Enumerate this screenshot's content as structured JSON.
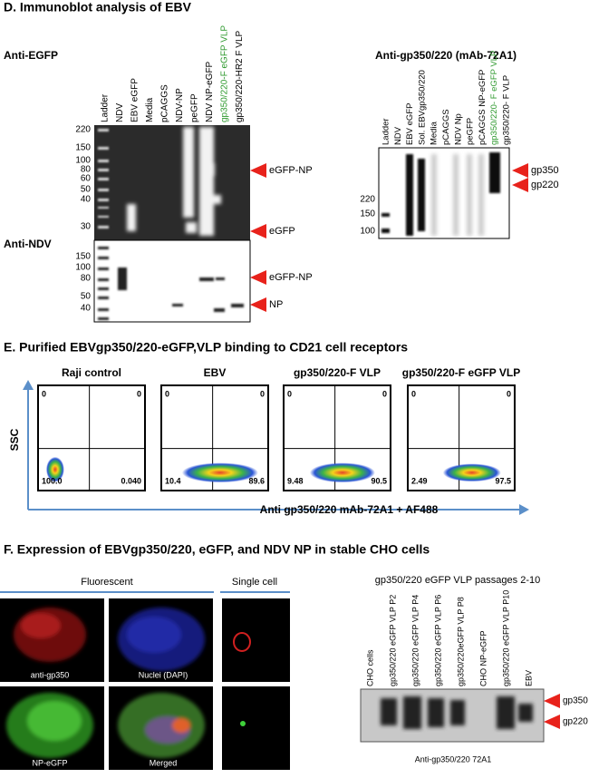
{
  "panel_d": {
    "title": "D. Immunoblot analysis of EBV",
    "anti_egfp": {
      "label": "Anti-EGFP",
      "lanes": [
        "Ladder",
        "NDV",
        "EBV eGFP",
        "Media",
        "pCAGGS",
        "NDV-NP",
        "peGFP",
        "NDV NP-eGFP",
        "gp350/220-F eGFP VLP",
        "gp350/220-HR2 F VLP"
      ],
      "markers": [
        "220",
        "150",
        "100",
        "80",
        "60",
        "50",
        "40",
        "30"
      ],
      "bands": [
        "eGFP-NP",
        "eGFP"
      ]
    },
    "anti_ndv": {
      "label": "Anti-NDV",
      "markers": [
        "150",
        "100",
        "80",
        "50",
        "40"
      ],
      "bands": [
        "eGFP-NP",
        "NP"
      ]
    },
    "anti_gp350": {
      "label": "Anti-gp350/220 (mAb-72A1)",
      "lanes": [
        "Ladder",
        "NDV",
        "EBV eGFP",
        "Sol. EBVgp350/220",
        "Media",
        "pCAGGS",
        "NDV Np",
        "peGFP",
        "pCAGGS NP-eGFP",
        "gp350/220- F eGFP VLP",
        "gp350/220- F VLP"
      ],
      "markers": [
        "220",
        "150",
        "100"
      ],
      "bands": [
        "gp350",
        "gp220"
      ]
    }
  },
  "panel_e": {
    "title": "E. Purified EBVgp350/220-eGFP,VLP binding to CD21 cell receptors",
    "y_label": "SSC",
    "x_label": "Anti gp350/220 mAb-72A1 + AF488",
    "plots": [
      {
        "title": "Raji control",
        "quadrants": [
          "0",
          "0",
          "100.0",
          "0.040"
        ]
      },
      {
        "title": "EBV",
        "quadrants": [
          "0",
          "0",
          "10.4",
          "89.6"
        ]
      },
      {
        "title": "gp350/220-F VLP",
        "quadrants": [
          "0",
          "0",
          "9.48",
          "90.5"
        ]
      },
      {
        "title": "gp350/220-F eGFP VLP",
        "quadrants": [
          "0",
          "0",
          "2.49",
          "97.5"
        ]
      }
    ]
  },
  "panel_f": {
    "title": "F. Expression of  EBVgp350/220, eGFP, and NDV NP in stable CHO cells",
    "headers": [
      "Fluorescent",
      "Single cell"
    ],
    "image_labels": [
      "anti-gp350",
      "Nuclei (DAPI)",
      "NP-eGFP",
      "Merged"
    ],
    "blot": {
      "title": "gp350/220 eGFP VLP passages 2-10",
      "lanes": [
        "CHO cells",
        "gp350/220 eGFP VLP P2",
        "gp350/220 eGFP VLP P4",
        "gp350/220 eGFP VLP P6",
        "gp350/220eGFP VLP P8",
        "CHO NP-eGFP",
        "gp350/220 eGFP VLP P10",
        "EBV"
      ],
      "bands": [
        "gp350",
        "gp220"
      ],
      "caption": "Anti-gp350/220 72A1"
    }
  }
}
